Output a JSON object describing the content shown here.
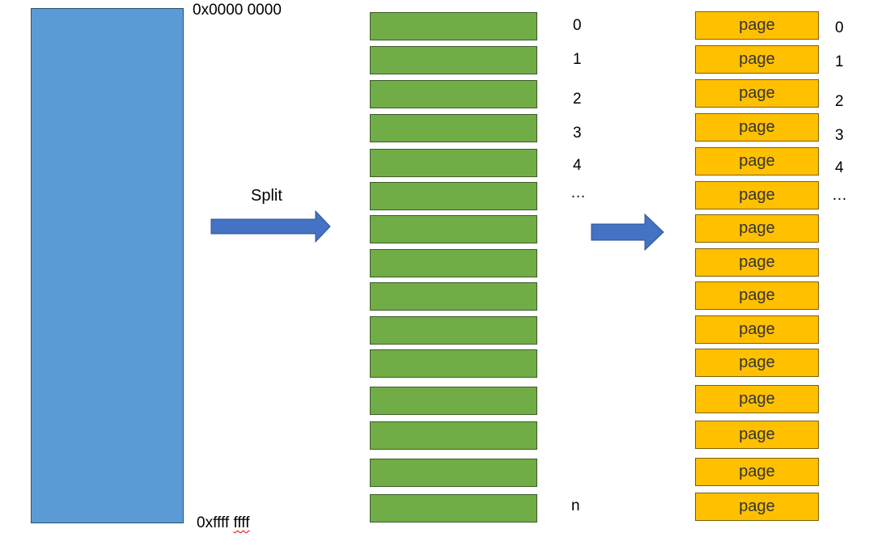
{
  "memory": {
    "start_address": "0x0000 0000",
    "end_address_prefix": "0xffff ",
    "end_address_suffix": "ffff"
  },
  "split_label": "Split",
  "segments": {
    "indices": [
      "0",
      "1",
      "2",
      "3",
      "4",
      "…",
      "n"
    ]
  },
  "pages": {
    "label": "page",
    "indices": [
      "0",
      "1",
      "2",
      "3",
      "4",
      "…"
    ]
  },
  "colors": {
    "memory": "#5b9bd5",
    "segment": "#70ad47",
    "page": "#ffc000",
    "arrow": "#4472c4"
  }
}
